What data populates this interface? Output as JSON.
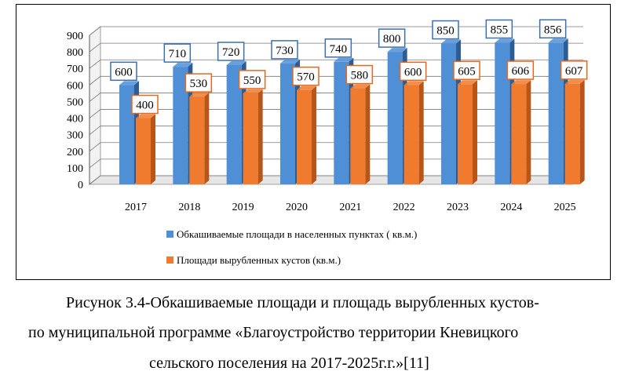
{
  "chart_data": {
    "type": "bar",
    "categories": [
      "2017",
      "2018",
      "2019",
      "2020",
      "2021",
      "2022",
      "2023",
      "2024",
      "2025"
    ],
    "series": [
      {
        "name": "Обкашиваемые площади в населенных пунктах ( кв.м.)",
        "values": [
          600,
          710,
          720,
          730,
          740,
          800,
          850,
          855,
          856
        ],
        "color": "#4F8FD6",
        "side_color": "#2E5D93",
        "label_border": "#3C6FB0"
      },
      {
        "name": "Площади вырубленных кустов (кв.м.)",
        "values": [
          400,
          530,
          550,
          570,
          580,
          600,
          605,
          606,
          607
        ],
        "color": "#F07A2D",
        "side_color": "#B8561A",
        "label_border": "#E2691F"
      }
    ],
    "y_ticks": [
      "0",
      "100",
      "200",
      "300",
      "400",
      "500",
      "600",
      "700",
      "800",
      "900"
    ],
    "ylim": [
      0,
      900
    ],
    "grid": true,
    "legend_position": "bottom",
    "three_d": true
  },
  "caption": {
    "line1": "Рисунок 3.4-Обкашиваемые площади и площадь вырубленных кустов-",
    "line2": "по муниципальной программе «Благоустройство территории Кневицкого",
    "line3": "сельского поселения на 2017-2025г.г.»[11]"
  }
}
